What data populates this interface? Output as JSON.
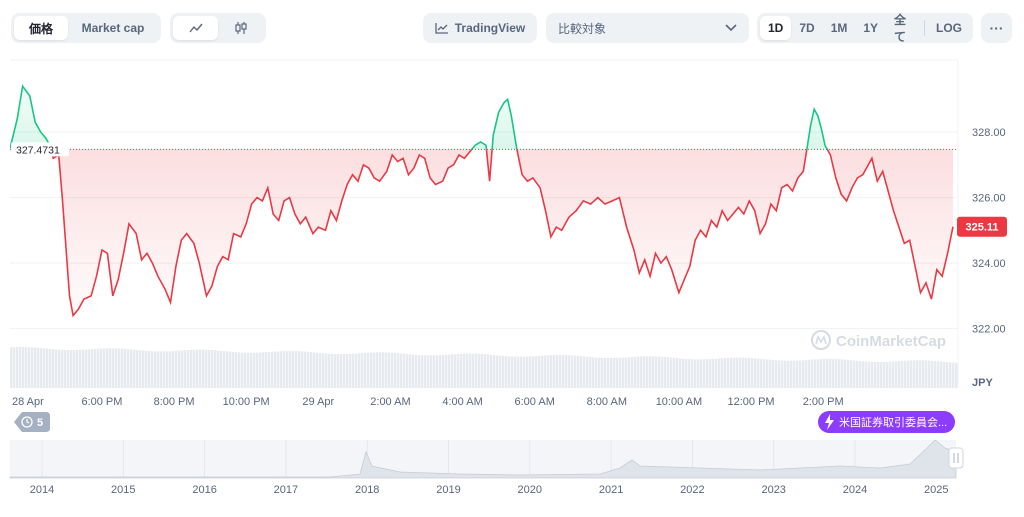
{
  "toolbar": {
    "view_tabs": [
      {
        "label": "価格",
        "active": true
      },
      {
        "label": "Market cap",
        "active": false
      }
    ],
    "chart_types": [
      {
        "icon": "line-chart-icon",
        "active": true
      },
      {
        "icon": "candlestick-icon",
        "active": false
      }
    ],
    "tradingview_label": "TradingView",
    "compare_placeholder": "比較対象",
    "ranges": [
      "1D",
      "7D",
      "1M",
      "1Y",
      "全て"
    ],
    "active_range": "1D",
    "log_label": "LOG",
    "more_label": "···"
  },
  "colors": {
    "up": "#16c784",
    "down": "#ea3943",
    "accent": "#8c3cff"
  },
  "watermark": "CoinMarketCap",
  "event_badge": "米国証券取引委員会...",
  "history_badge": "5",
  "chart_data": {
    "type": "line",
    "currency": "JPY",
    "baseline": 327.4731,
    "current": 325.11,
    "ylim": [
      321.5,
      330.2
    ],
    "yticks": [
      322.0,
      324.0,
      326.0,
      328.0
    ],
    "xtick_labels": [
      "28 Apr",
      "6:00 PM",
      "8:00 PM",
      "10:00 PM",
      "29 Apr",
      "2:00 AM",
      "4:00 AM",
      "6:00 AM",
      "8:00 AM",
      "10:00 AM",
      "12:00 PM",
      "2:00 PM"
    ],
    "x_hours": [
      0,
      2.55,
      4.55,
      6.55,
      8.55,
      10.55,
      12.55,
      14.55,
      16.55,
      18.55,
      20.55,
      22.55
    ],
    "x_end_hours": 24.5,
    "grid": true,
    "price": [
      [
        0,
        327.5
      ],
      [
        0.2,
        328.4
      ],
      [
        0.35,
        329.4
      ],
      [
        0.55,
        329.1
      ],
      [
        0.7,
        328.3
      ],
      [
        0.85,
        328.0
      ],
      [
        1.0,
        327.8
      ],
      [
        1.1,
        327.6
      ],
      [
        1.2,
        327.2
      ],
      [
        1.35,
        327.3
      ],
      [
        1.45,
        326.0
      ],
      [
        1.55,
        324.5
      ],
      [
        1.65,
        323.0
      ],
      [
        1.75,
        322.4
      ],
      [
        1.9,
        322.6
      ],
      [
        2.05,
        322.9
      ],
      [
        2.25,
        323.0
      ],
      [
        2.4,
        323.6
      ],
      [
        2.55,
        324.4
      ],
      [
        2.7,
        324.3
      ],
      [
        2.85,
        323.0
      ],
      [
        3.0,
        323.5
      ],
      [
        3.15,
        324.3
      ],
      [
        3.3,
        325.2
      ],
      [
        3.5,
        324.9
      ],
      [
        3.65,
        324.1
      ],
      [
        3.8,
        324.3
      ],
      [
        3.95,
        324.0
      ],
      [
        4.1,
        323.6
      ],
      [
        4.3,
        323.2
      ],
      [
        4.45,
        322.8
      ],
      [
        4.6,
        323.9
      ],
      [
        4.75,
        324.7
      ],
      [
        4.9,
        324.9
      ],
      [
        5.1,
        324.6
      ],
      [
        5.25,
        324.0
      ],
      [
        5.45,
        323.0
      ],
      [
        5.6,
        323.3
      ],
      [
        5.75,
        323.9
      ],
      [
        5.9,
        324.2
      ],
      [
        6.05,
        324.1
      ],
      [
        6.2,
        324.9
      ],
      [
        6.4,
        324.8
      ],
      [
        6.55,
        325.2
      ],
      [
        6.7,
        325.8
      ],
      [
        6.85,
        326.0
      ],
      [
        7.0,
        325.9
      ],
      [
        7.15,
        326.3
      ],
      [
        7.3,
        325.5
      ],
      [
        7.45,
        325.3
      ],
      [
        7.6,
        325.9
      ],
      [
        7.75,
        326.0
      ],
      [
        7.9,
        325.5
      ],
      [
        8.05,
        325.2
      ],
      [
        8.2,
        325.4
      ],
      [
        8.4,
        324.9
      ],
      [
        8.55,
        325.1
      ],
      [
        8.75,
        325.0
      ],
      [
        8.9,
        325.6
      ],
      [
        9.05,
        325.3
      ],
      [
        9.2,
        325.9
      ],
      [
        9.35,
        326.4
      ],
      [
        9.5,
        326.7
      ],
      [
        9.65,
        326.5
      ],
      [
        9.8,
        327.0
      ],
      [
        9.95,
        326.9
      ],
      [
        10.1,
        326.6
      ],
      [
        10.25,
        326.5
      ],
      [
        10.45,
        326.8
      ],
      [
        10.6,
        327.3
      ],
      [
        10.75,
        327.1
      ],
      [
        10.9,
        327.2
      ],
      [
        11.05,
        326.7
      ],
      [
        11.2,
        326.9
      ],
      [
        11.35,
        327.3
      ],
      [
        11.5,
        327.2
      ],
      [
        11.65,
        326.6
      ],
      [
        11.8,
        326.4
      ],
      [
        12.0,
        326.5
      ],
      [
        12.15,
        326.9
      ],
      [
        12.3,
        327.0
      ],
      [
        12.45,
        327.3
      ],
      [
        12.6,
        327.2
      ],
      [
        12.75,
        327.4
      ],
      [
        12.9,
        327.6
      ],
      [
        13.05,
        327.7
      ],
      [
        13.2,
        327.6
      ],
      [
        13.3,
        326.5
      ],
      [
        13.4,
        327.9
      ],
      [
        13.55,
        328.6
      ],
      [
        13.7,
        328.9
      ],
      [
        13.8,
        329.0
      ],
      [
        13.9,
        328.5
      ],
      [
        14.05,
        327.5
      ],
      [
        14.2,
        326.7
      ],
      [
        14.35,
        326.5
      ],
      [
        14.5,
        326.6
      ],
      [
        14.7,
        326.3
      ],
      [
        14.85,
        325.6
      ],
      [
        15.0,
        324.8
      ],
      [
        15.15,
        325.1
      ],
      [
        15.3,
        325.0
      ],
      [
        15.5,
        325.4
      ],
      [
        15.7,
        325.6
      ],
      [
        15.9,
        325.9
      ],
      [
        16.1,
        325.8
      ],
      [
        16.3,
        326.0
      ],
      [
        16.5,
        325.8
      ],
      [
        16.7,
        325.9
      ],
      [
        16.9,
        326.0
      ],
      [
        17.1,
        325.1
      ],
      [
        17.3,
        324.4
      ],
      [
        17.45,
        323.7
      ],
      [
        17.6,
        324.1
      ],
      [
        17.75,
        323.6
      ],
      [
        17.9,
        324.3
      ],
      [
        18.05,
        324.0
      ],
      [
        18.2,
        324.2
      ],
      [
        18.35,
        323.8
      ],
      [
        18.55,
        323.1
      ],
      [
        18.7,
        323.5
      ],
      [
        18.85,
        323.9
      ],
      [
        19.0,
        324.7
      ],
      [
        19.15,
        325.0
      ],
      [
        19.3,
        324.8
      ],
      [
        19.45,
        325.3
      ],
      [
        19.6,
        325.1
      ],
      [
        19.75,
        325.6
      ],
      [
        19.9,
        325.3
      ],
      [
        20.05,
        325.5
      ],
      [
        20.2,
        325.7
      ],
      [
        20.35,
        325.5
      ],
      [
        20.5,
        325.9
      ],
      [
        20.65,
        325.6
      ],
      [
        20.8,
        324.9
      ],
      [
        20.95,
        325.2
      ],
      [
        21.1,
        325.8
      ],
      [
        21.25,
        325.6
      ],
      [
        21.4,
        326.3
      ],
      [
        21.55,
        326.4
      ],
      [
        21.7,
        326.2
      ],
      [
        21.85,
        326.6
      ],
      [
        22.0,
        326.8
      ],
      [
        22.1,
        327.5
      ],
      [
        22.2,
        328.2
      ],
      [
        22.3,
        328.7
      ],
      [
        22.4,
        328.5
      ],
      [
        22.5,
        328.1
      ],
      [
        22.6,
        327.6
      ],
      [
        22.75,
        327.3
      ],
      [
        22.9,
        326.6
      ],
      [
        23.05,
        326.1
      ],
      [
        23.2,
        325.9
      ],
      [
        23.35,
        326.3
      ],
      [
        23.5,
        326.6
      ],
      [
        23.65,
        326.7
      ],
      [
        23.8,
        327.0
      ],
      [
        23.9,
        327.2
      ],
      [
        24.05,
        326.5
      ],
      [
        24.2,
        326.8
      ],
      [
        24.35,
        326.2
      ],
      [
        24.5,
        325.6
      ],
      [
        24.65,
        325.1
      ],
      [
        24.8,
        324.6
      ],
      [
        24.95,
        324.7
      ],
      [
        25.1,
        323.9
      ],
      [
        25.25,
        323.1
      ],
      [
        25.4,
        323.4
      ],
      [
        25.55,
        322.9
      ],
      [
        25.7,
        323.8
      ],
      [
        25.85,
        323.6
      ],
      [
        26.0,
        324.3
      ],
      [
        26.15,
        325.11
      ]
    ]
  },
  "timeline_chart": {
    "years": [
      "2014",
      "2015",
      "2016",
      "2017",
      "2018",
      "2019",
      "2020",
      "2021",
      "2022",
      "2023",
      "2024",
      "2025"
    ]
  }
}
